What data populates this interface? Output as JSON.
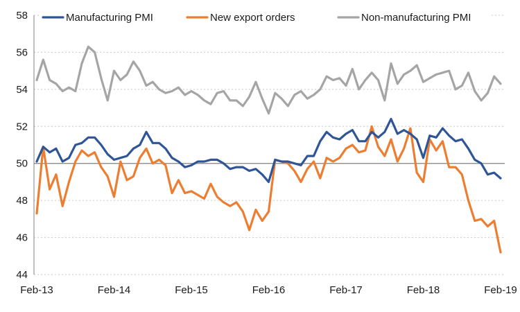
{
  "chart_data": {
    "type": "line",
    "title": "",
    "xlabel": "",
    "ylabel": "",
    "ylim": [
      44,
      58
    ],
    "yticks": [
      44,
      46,
      48,
      50,
      52,
      54,
      56,
      58
    ],
    "reference_line": 50,
    "grid": "horizontal-dotted",
    "legend_position": "top",
    "x_start": "Feb-13",
    "x_end": "Feb-19",
    "xtick_labels": [
      "Feb-13",
      "Feb-14",
      "Feb-15",
      "Feb-16",
      "Feb-17",
      "Feb-18",
      "Feb-19"
    ],
    "xtick_indices": [
      0,
      12,
      24,
      36,
      48,
      60,
      72
    ],
    "series": [
      {
        "name": "Manufacturing PMI",
        "color": "#2f5597",
        "values": [
          50.1,
          50.9,
          50.6,
          50.8,
          50.1,
          50.3,
          51.0,
          51.1,
          51.4,
          51.4,
          51.0,
          50.5,
          50.2,
          50.3,
          50.4,
          50.8,
          51.0,
          51.7,
          51.1,
          51.1,
          50.8,
          50.3,
          50.1,
          49.8,
          49.9,
          50.1,
          50.1,
          50.2,
          50.2,
          50.0,
          49.7,
          49.8,
          49.8,
          49.6,
          49.7,
          49.4,
          49.0,
          50.2,
          50.1,
          50.1,
          50.0,
          49.9,
          50.4,
          50.4,
          51.2,
          51.7,
          51.4,
          51.3,
          51.6,
          51.8,
          51.2,
          51.2,
          51.7,
          51.4,
          51.7,
          52.4,
          51.6,
          51.8,
          51.6,
          51.3,
          50.3,
          51.5,
          51.4,
          51.9,
          51.5,
          51.2,
          51.3,
          50.8,
          50.2,
          50.0,
          49.4,
          49.5,
          49.2
        ]
      },
      {
        "name": "New export orders",
        "color": "#ed7d31",
        "values": [
          47.3,
          50.9,
          48.6,
          49.4,
          47.7,
          49.0,
          50.1,
          50.7,
          50.4,
          50.6,
          49.8,
          49.3,
          48.2,
          50.1,
          49.1,
          49.3,
          50.3,
          50.8,
          50.0,
          50.2,
          49.9,
          48.4,
          49.1,
          48.4,
          48.5,
          48.3,
          48.1,
          48.9,
          48.2,
          47.9,
          47.7,
          47.9,
          47.4,
          46.4,
          47.5,
          46.9,
          47.4,
          50.2,
          50.1,
          50.0,
          49.6,
          49.0,
          49.7,
          50.1,
          49.2,
          50.3,
          50.1,
          50.3,
          50.8,
          51.0,
          50.6,
          50.7,
          52.0,
          50.9,
          50.4,
          51.3,
          50.1,
          50.8,
          51.9,
          49.5,
          49.0,
          51.3,
          50.7,
          51.2,
          49.8,
          49.8,
          49.4,
          48.0,
          46.9,
          47.0,
          46.6,
          46.9,
          45.2
        ]
      },
      {
        "name": "Non-manufacturing PMI",
        "color": "#a5a5a5",
        "values": [
          54.5,
          55.6,
          54.5,
          54.3,
          53.9,
          54.1,
          53.9,
          55.4,
          56.3,
          56.0,
          54.6,
          53.4,
          55.0,
          54.5,
          54.8,
          55.5,
          55.0,
          54.2,
          54.4,
          54.0,
          53.8,
          53.9,
          54.1,
          53.7,
          53.9,
          53.7,
          53.4,
          53.2,
          53.8,
          53.9,
          53.4,
          53.4,
          53.1,
          53.6,
          54.4,
          53.5,
          52.7,
          53.8,
          53.5,
          53.1,
          53.7,
          53.9,
          53.5,
          53.7,
          54.0,
          54.7,
          54.5,
          54.6,
          54.2,
          55.1,
          54.0,
          54.5,
          54.9,
          54.5,
          53.4,
          55.4,
          54.3,
          54.8,
          55.0,
          55.3,
          54.4,
          54.6,
          54.8,
          54.9,
          55.0,
          54.0,
          54.2,
          54.9,
          53.9,
          53.4,
          53.8,
          54.7,
          54.3
        ]
      }
    ]
  }
}
